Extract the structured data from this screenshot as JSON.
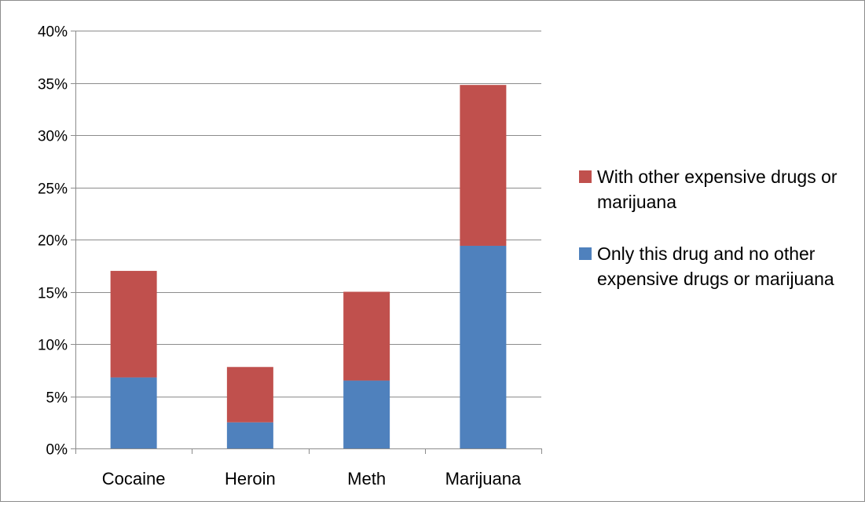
{
  "chart_data": {
    "type": "bar",
    "stacked": true,
    "categories": [
      "Cocaine",
      "Heroin",
      "Meth",
      "Marijuana"
    ],
    "series": [
      {
        "name": "Only this drug and no other expensive drugs or marijuana",
        "color": "#4F81BD",
        "values": [
          6.8,
          2.5,
          6.5,
          19.4
        ]
      },
      {
        "name": "With other expensive drugs or marijuana",
        "color": "#C0504D",
        "values": [
          10.2,
          5.3,
          8.5,
          15.4
        ]
      }
    ],
    "y_ticks": [
      "0%",
      "5%",
      "10%",
      "15%",
      "20%",
      "25%",
      "30%",
      "35%",
      "40%"
    ],
    "ylim": [
      0,
      40
    ],
    "y_unit": "%",
    "grid": true,
    "legend_position": "right",
    "title": "",
    "xlabel": "",
    "ylabel": ""
  }
}
